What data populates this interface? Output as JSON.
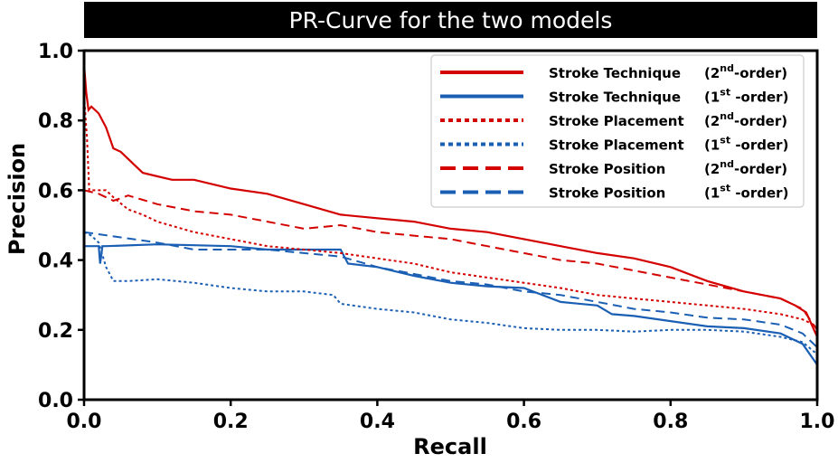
{
  "chart_data": {
    "type": "line",
    "title": "PR-Curve for the two models",
    "xlabel": "Recall",
    "ylabel": "Precision",
    "xlim": [
      0.0,
      1.0
    ],
    "ylim": [
      0.0,
      1.0
    ],
    "xticks": [
      "0.0",
      "0.2",
      "0.4",
      "0.6",
      "0.8",
      "1.0"
    ],
    "yticks": [
      "0.0",
      "0.2",
      "0.4",
      "0.6",
      "0.8",
      "1.0"
    ],
    "grid": false,
    "legend_position": "top-right",
    "series": [
      {
        "name": "Stroke Technique",
        "order_base": "2",
        "order_sup": "nd",
        "order_tail": "-order",
        "color": "#d40000",
        "dash": "solid",
        "points": [
          [
            0.0,
            0.96
          ],
          [
            0.003,
            0.88
          ],
          [
            0.006,
            0.83
          ],
          [
            0.01,
            0.84
          ],
          [
            0.02,
            0.82
          ],
          [
            0.03,
            0.78
          ],
          [
            0.04,
            0.72
          ],
          [
            0.05,
            0.71
          ],
          [
            0.06,
            0.69
          ],
          [
            0.07,
            0.67
          ],
          [
            0.08,
            0.65
          ],
          [
            0.1,
            0.64
          ],
          [
            0.12,
            0.63
          ],
          [
            0.15,
            0.63
          ],
          [
            0.2,
            0.605
          ],
          [
            0.25,
            0.59
          ],
          [
            0.3,
            0.56
          ],
          [
            0.35,
            0.53
          ],
          [
            0.4,
            0.52
          ],
          [
            0.45,
            0.51
          ],
          [
            0.5,
            0.49
          ],
          [
            0.55,
            0.48
          ],
          [
            0.6,
            0.46
          ],
          [
            0.65,
            0.44
          ],
          [
            0.7,
            0.42
          ],
          [
            0.75,
            0.405
          ],
          [
            0.8,
            0.38
          ],
          [
            0.85,
            0.34
          ],
          [
            0.9,
            0.31
          ],
          [
            0.95,
            0.29
          ],
          [
            0.97,
            0.27
          ],
          [
            0.985,
            0.25
          ],
          [
            1.0,
            0.18
          ]
        ]
      },
      {
        "name": "Stroke Technique",
        "order_base": "1",
        "order_sup": "st",
        "order_tail": " -order",
        "color": "#1a5fb4",
        "dash": "solid",
        "points": [
          [
            0.0,
            0.44
          ],
          [
            0.02,
            0.44
          ],
          [
            0.022,
            0.39
          ],
          [
            0.025,
            0.44
          ],
          [
            0.03,
            0.44
          ],
          [
            0.1,
            0.445
          ],
          [
            0.2,
            0.44
          ],
          [
            0.25,
            0.43
          ],
          [
            0.3,
            0.43
          ],
          [
            0.35,
            0.43
          ],
          [
            0.36,
            0.39
          ],
          [
            0.4,
            0.38
          ],
          [
            0.45,
            0.355
          ],
          [
            0.5,
            0.335
          ],
          [
            0.55,
            0.325
          ],
          [
            0.6,
            0.32
          ],
          [
            0.65,
            0.28
          ],
          [
            0.7,
            0.27
          ],
          [
            0.72,
            0.245
          ],
          [
            0.75,
            0.24
          ],
          [
            0.8,
            0.225
          ],
          [
            0.85,
            0.21
          ],
          [
            0.9,
            0.205
          ],
          [
            0.95,
            0.19
          ],
          [
            0.98,
            0.16
          ],
          [
            1.0,
            0.1
          ]
        ]
      },
      {
        "name": "Stroke Placement",
        "order_base": "2",
        "order_sup": "nd",
        "order_tail": "-order",
        "color": "#d40000",
        "dash": "dot",
        "points": [
          [
            0.0,
            0.87
          ],
          [
            0.004,
            0.75
          ],
          [
            0.007,
            0.6
          ],
          [
            0.01,
            0.6
          ],
          [
            0.03,
            0.6
          ],
          [
            0.04,
            0.58
          ],
          [
            0.06,
            0.545
          ],
          [
            0.08,
            0.53
          ],
          [
            0.1,
            0.51
          ],
          [
            0.15,
            0.48
          ],
          [
            0.2,
            0.46
          ],
          [
            0.25,
            0.44
          ],
          [
            0.3,
            0.43
          ],
          [
            0.35,
            0.42
          ],
          [
            0.4,
            0.405
          ],
          [
            0.45,
            0.39
          ],
          [
            0.5,
            0.365
          ],
          [
            0.55,
            0.35
          ],
          [
            0.6,
            0.335
          ],
          [
            0.65,
            0.32
          ],
          [
            0.7,
            0.3
          ],
          [
            0.75,
            0.29
          ],
          [
            0.8,
            0.28
          ],
          [
            0.85,
            0.27
          ],
          [
            0.9,
            0.26
          ],
          [
            0.95,
            0.245
          ],
          [
            0.98,
            0.23
          ],
          [
            1.0,
            0.21
          ]
        ]
      },
      {
        "name": "Stroke Placement",
        "order_base": "1",
        "order_sup": "st",
        "order_tail": " -order",
        "color": "#1a5fb4",
        "dash": "dot",
        "points": [
          [
            0.0,
            0.48
          ],
          [
            0.01,
            0.47
          ],
          [
            0.02,
            0.45
          ],
          [
            0.03,
            0.38
          ],
          [
            0.035,
            0.36
          ],
          [
            0.04,
            0.34
          ],
          [
            0.06,
            0.34
          ],
          [
            0.1,
            0.345
          ],
          [
            0.15,
            0.335
          ],
          [
            0.2,
            0.32
          ],
          [
            0.25,
            0.31
          ],
          [
            0.3,
            0.31
          ],
          [
            0.32,
            0.305
          ],
          [
            0.34,
            0.3
          ],
          [
            0.35,
            0.275
          ],
          [
            0.4,
            0.26
          ],
          [
            0.45,
            0.25
          ],
          [
            0.5,
            0.23
          ],
          [
            0.55,
            0.22
          ],
          [
            0.6,
            0.205
          ],
          [
            0.65,
            0.2
          ],
          [
            0.7,
            0.2
          ],
          [
            0.75,
            0.195
          ],
          [
            0.8,
            0.2
          ],
          [
            0.85,
            0.2
          ],
          [
            0.9,
            0.195
          ],
          [
            0.95,
            0.18
          ],
          [
            0.98,
            0.165
          ],
          [
            1.0,
            0.13
          ]
        ]
      },
      {
        "name": "Stroke Position",
        "order_base": "2",
        "order_sup": "nd",
        "order_tail": "-order",
        "color": "#d40000",
        "dash": "dash",
        "points": [
          [
            0.0,
            0.6
          ],
          [
            0.02,
            0.59
          ],
          [
            0.04,
            0.57
          ],
          [
            0.06,
            0.585
          ],
          [
            0.1,
            0.56
          ],
          [
            0.15,
            0.54
          ],
          [
            0.2,
            0.53
          ],
          [
            0.25,
            0.51
          ],
          [
            0.3,
            0.49
          ],
          [
            0.35,
            0.5
          ],
          [
            0.4,
            0.48
          ],
          [
            0.45,
            0.47
          ],
          [
            0.5,
            0.46
          ],
          [
            0.55,
            0.44
          ],
          [
            0.6,
            0.42
          ],
          [
            0.65,
            0.4
          ],
          [
            0.7,
            0.39
          ],
          [
            0.75,
            0.37
          ],
          [
            0.8,
            0.35
          ],
          [
            0.85,
            0.33
          ],
          [
            0.9,
            0.31
          ],
          [
            0.95,
            0.29
          ],
          [
            0.98,
            0.26
          ],
          [
            1.0,
            0.2
          ]
        ]
      },
      {
        "name": "Stroke Position",
        "order_base": "1",
        "order_sup": "st",
        "order_tail": " -order",
        "color": "#1a5fb4",
        "dash": "dash",
        "points": [
          [
            0.0,
            0.48
          ],
          [
            0.05,
            0.465
          ],
          [
            0.1,
            0.45
          ],
          [
            0.15,
            0.43
          ],
          [
            0.2,
            0.43
          ],
          [
            0.25,
            0.43
          ],
          [
            0.3,
            0.42
          ],
          [
            0.35,
            0.41
          ],
          [
            0.4,
            0.38
          ],
          [
            0.45,
            0.36
          ],
          [
            0.5,
            0.34
          ],
          [
            0.55,
            0.33
          ],
          [
            0.6,
            0.31
          ],
          [
            0.65,
            0.3
          ],
          [
            0.7,
            0.28
          ],
          [
            0.75,
            0.26
          ],
          [
            0.8,
            0.25
          ],
          [
            0.85,
            0.235
          ],
          [
            0.9,
            0.23
          ],
          [
            0.95,
            0.215
          ],
          [
            0.98,
            0.19
          ],
          [
            1.0,
            0.15
          ]
        ]
      }
    ]
  }
}
